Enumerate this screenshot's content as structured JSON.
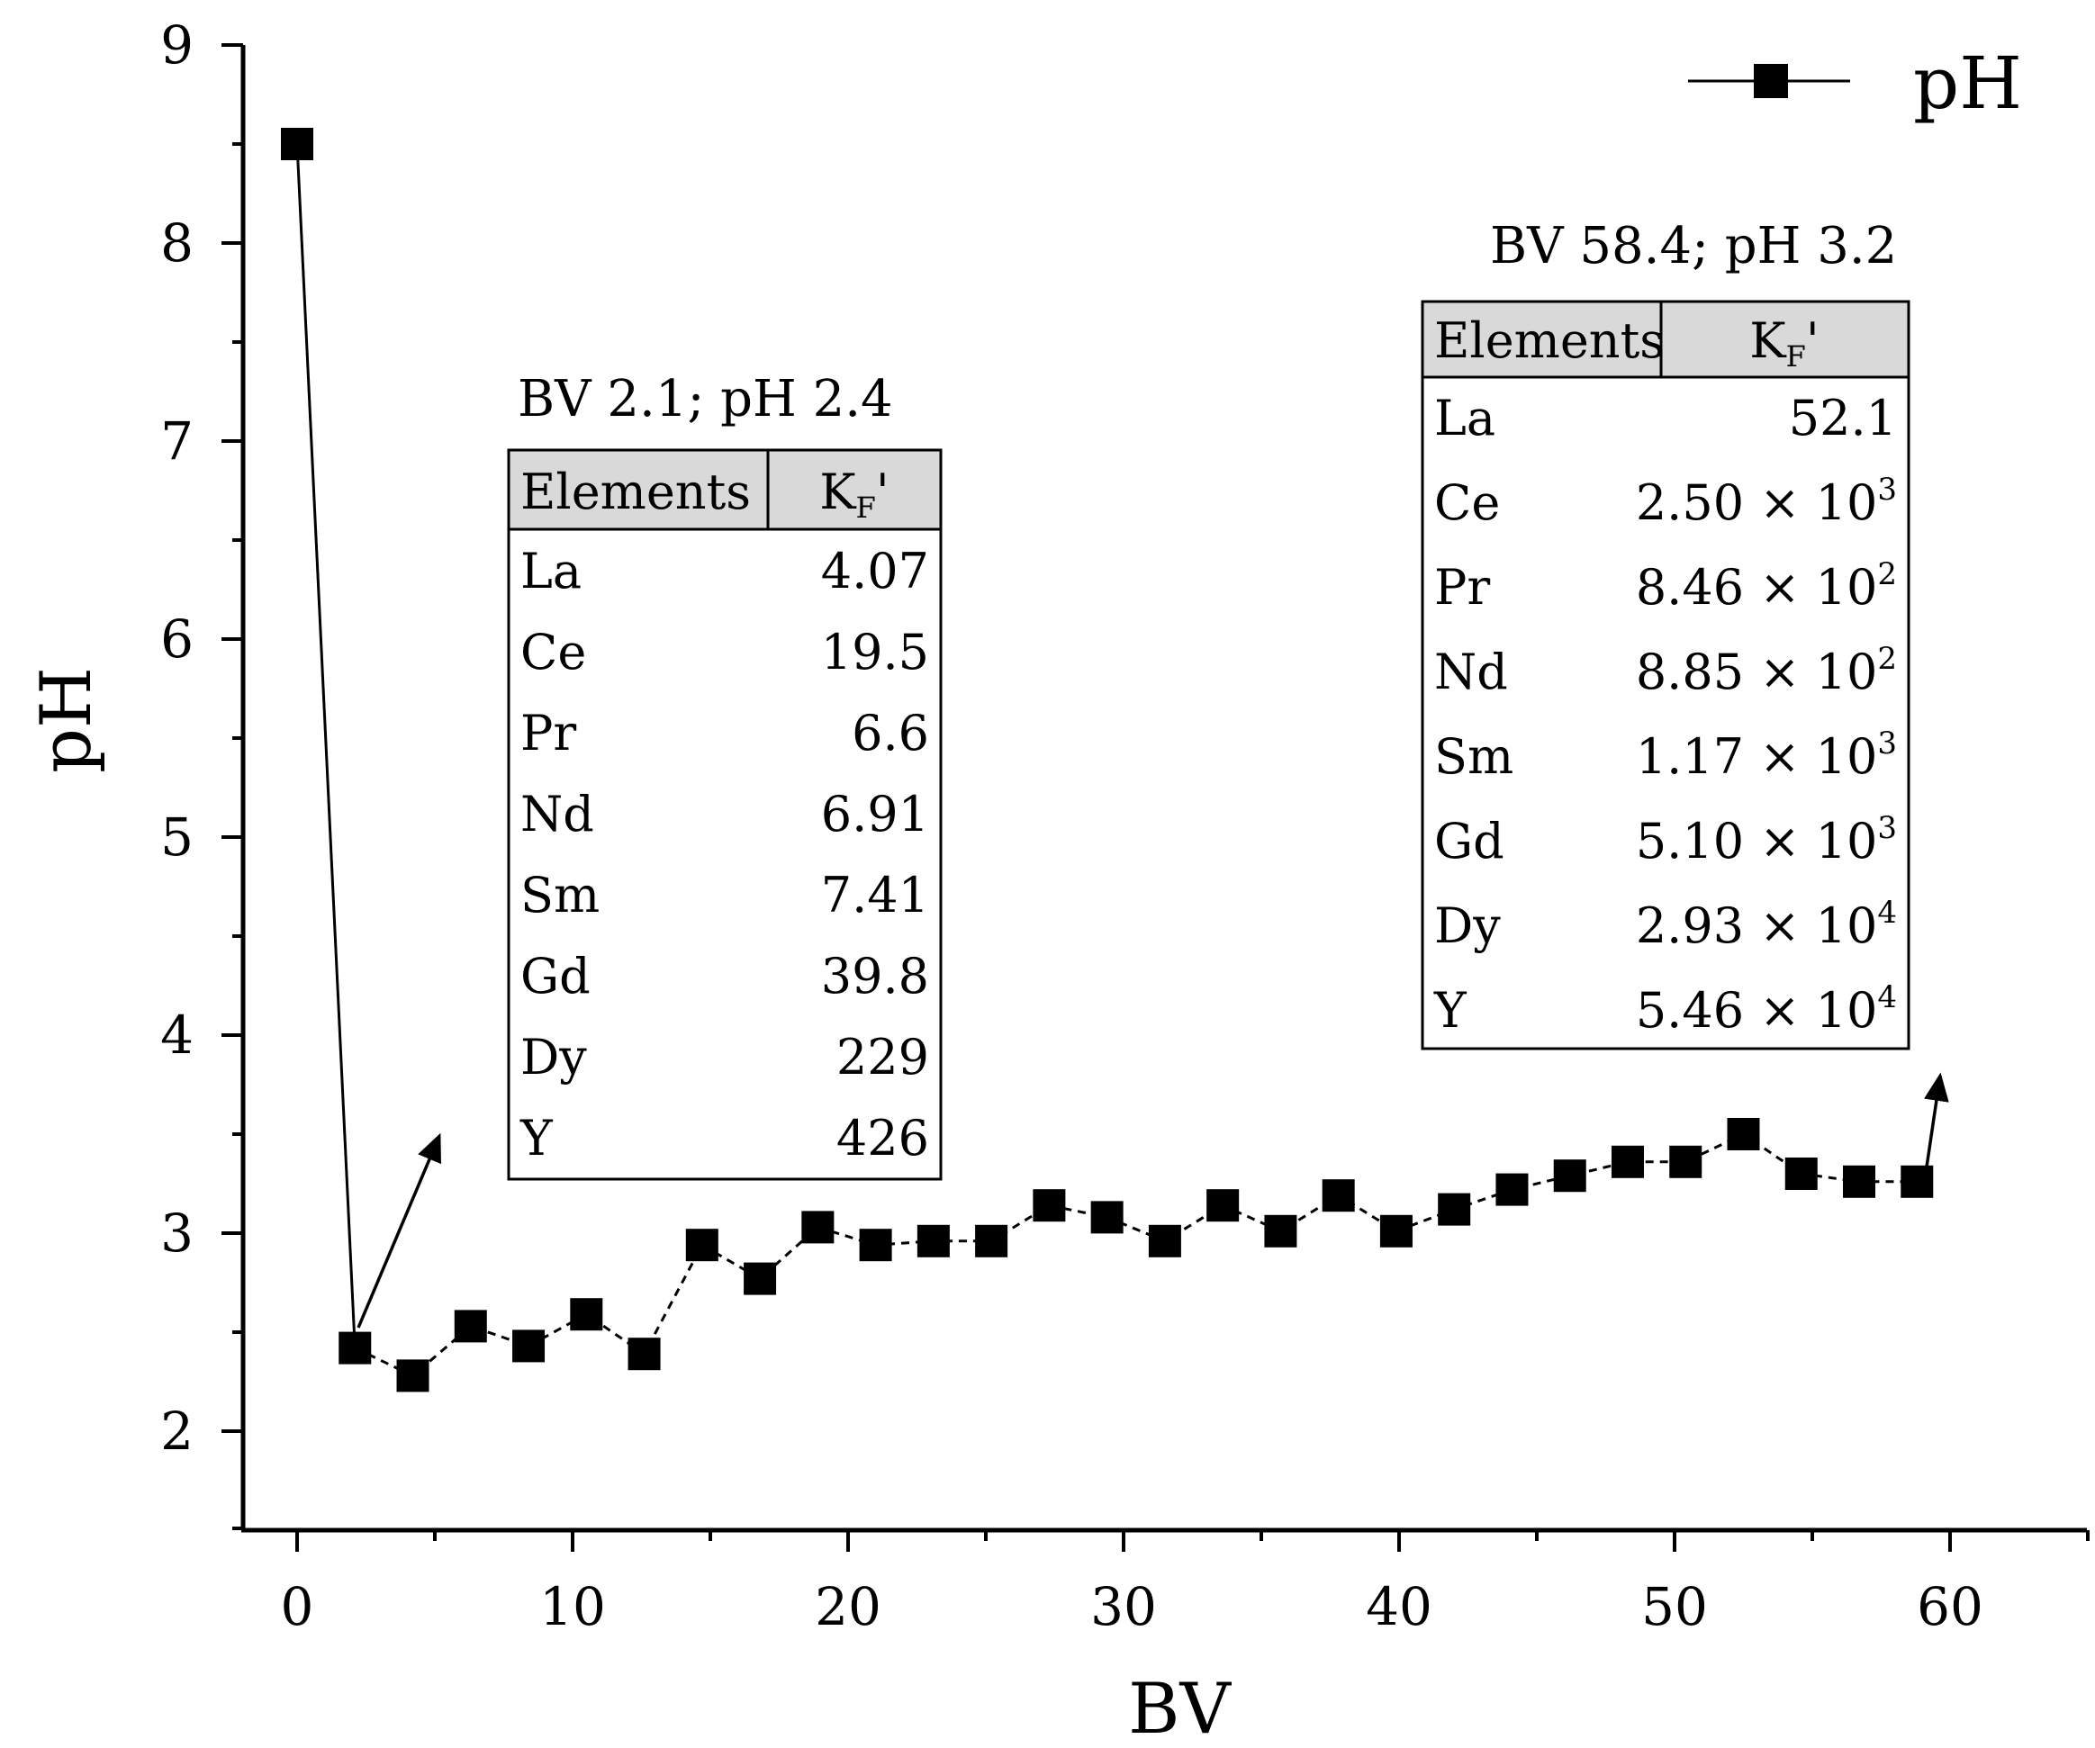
{
  "chart_data": {
    "type": "line",
    "title": "",
    "xlabel": "BV",
    "ylabel": "pH",
    "xlim": [
      -2,
      65
    ],
    "ylim": [
      1.5,
      9
    ],
    "xticks": [
      "0",
      "10",
      "20",
      "30",
      "40",
      "50",
      "60"
    ],
    "yticks": [
      "2",
      "3",
      "4",
      "5",
      "6",
      "7",
      "8",
      "9"
    ],
    "legend": {
      "label": "pH",
      "position": "top-right"
    },
    "series": [
      {
        "name": "pH",
        "x": [
          0,
          2.1,
          4.2,
          6.3,
          8.4,
          10.5,
          12.6,
          14.7,
          16.8,
          18.9,
          21.0,
          23.1,
          25.2,
          27.3,
          29.4,
          31.5,
          33.6,
          35.7,
          37.8,
          39.9,
          42.0,
          44.1,
          46.2,
          48.3,
          50.4,
          52.5,
          54.6,
          56.7,
          58.8
        ],
        "y": [
          8.5,
          2.42,
          2.28,
          2.53,
          2.43,
          2.59,
          2.39,
          2.94,
          2.77,
          3.03,
          2.94,
          2.96,
          2.96,
          3.14,
          3.08,
          2.96,
          3.14,
          3.01,
          3.19,
          3.01,
          3.12,
          3.22,
          3.29,
          3.36,
          3.36,
          3.5,
          3.3,
          3.26,
          3.26
        ]
      }
    ],
    "annotations": [
      {
        "title": "BV 2.1; pH 2.4",
        "col_elements": "Elements",
        "col_kf": "K",
        "col_kf_sub": "F",
        "col_kf_prime": "'",
        "rows": [
          {
            "element": "La",
            "value": "4.07"
          },
          {
            "element": "Ce",
            "value": "19.5"
          },
          {
            "element": "Pr",
            "value": "6.6"
          },
          {
            "element": "Nd",
            "value": "6.91"
          },
          {
            "element": "Sm",
            "value": "7.41"
          },
          {
            "element": "Gd",
            "value": "39.8"
          },
          {
            "element": "Dy",
            "value": "229"
          },
          {
            "element": "Y",
            "value": "426"
          }
        ]
      },
      {
        "title": "BV 58.4; pH 3.2",
        "col_elements": "Elements",
        "col_kf": "K",
        "col_kf_sub": "F",
        "col_kf_prime": "'",
        "rows": [
          {
            "element": "La",
            "value": "52.1"
          },
          {
            "element": "Ce",
            "value": "2.50 × 10",
            "exp": "3"
          },
          {
            "element": "Pr",
            "value": "8.46 × 10",
            "exp": "2"
          },
          {
            "element": "Nd",
            "value": "8.85 × 10",
            "exp": "2"
          },
          {
            "element": "Sm",
            "value": "1.17 × 10",
            "exp": "3"
          },
          {
            "element": "Gd",
            "value": "5.10 × 10",
            "exp": "3"
          },
          {
            "element": "Dy",
            "value": "2.93 × 10",
            "exp": "4"
          },
          {
            "element": "Y",
            "value": "5.46 × 10",
            "exp": "4"
          }
        ]
      }
    ]
  }
}
